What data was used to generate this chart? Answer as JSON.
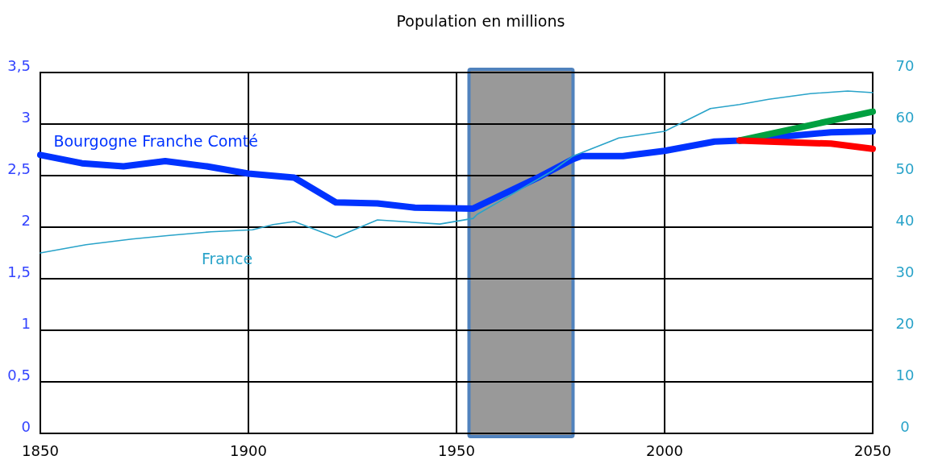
{
  "chart_data": {
    "type": "line",
    "title": "Population en millions",
    "xlim": [
      1850,
      2050
    ],
    "xticks": [
      1850,
      1900,
      1950,
      2000,
      2050
    ],
    "ylim": [
      0,
      3.5
    ],
    "yticks": [
      0,
      {
        "value": 0.5,
        "label": "0,5"
      },
      1,
      {
        "value": 1.5,
        "label": "1,5"
      },
      2,
      {
        "value": 2.5,
        "label": "2,5"
      },
      3,
      {
        "value": 3.5,
        "label": "3,5"
      }
    ],
    "y2lim": [
      0,
      70
    ],
    "y2ticks": [
      0,
      10,
      20,
      30,
      40,
      50,
      60,
      70
    ],
    "grid": true,
    "series": [
      {
        "name": "Bourgogne Franche Comté",
        "color": "#0033ff",
        "x": [
          1850,
          1860,
          1870,
          1880,
          1890,
          1900,
          1911,
          1921,
          1931,
          1940,
          1954,
          1970,
          1978,
          1980,
          1990,
          2000,
          2012,
          2018,
          2040,
          2050
        ],
        "values": [
          2.7,
          2.62,
          2.59,
          2.64,
          2.59,
          2.52,
          2.48,
          2.24,
          2.23,
          2.19,
          2.18,
          2.49,
          2.66,
          2.69,
          2.69,
          2.74,
          2.83,
          2.84,
          2.92,
          2.93
        ]
      },
      {
        "color": "#00a040",
        "x": [
          2018,
          2050
        ],
        "values": [
          2.84,
          3.12
        ]
      },
      {
        "color": "#ff0000",
        "x": [
          2018,
          2040,
          2050
        ],
        "values": [
          2.84,
          2.81,
          2.76
        ]
      },
      {
        "name": "France",
        "color": "#29a3c9",
        "axis": "y2",
        "x": [
          1850,
          1861,
          1872,
          1881,
          1891,
          1901,
          1906,
          1911,
          1921,
          1931,
          1946,
          1954,
          1955,
          1973,
          1978,
          1989,
          2000,
          2011,
          2018,
          2025,
          2035,
          2044,
          2050
        ],
        "values": [
          35.0,
          36.6,
          37.7,
          38.4,
          39.1,
          39.5,
          40.5,
          41.1,
          38.0,
          41.4,
          40.6,
          41.7,
          42.5,
          50.9,
          53.8,
          57.3,
          58.6,
          63.0,
          63.8,
          64.8,
          65.9,
          66.4,
          66.1
        ]
      }
    ],
    "bands": [
      {
        "axis": "x",
        "from": 1953,
        "to": 1978,
        "color": "#999999"
      }
    ]
  }
}
